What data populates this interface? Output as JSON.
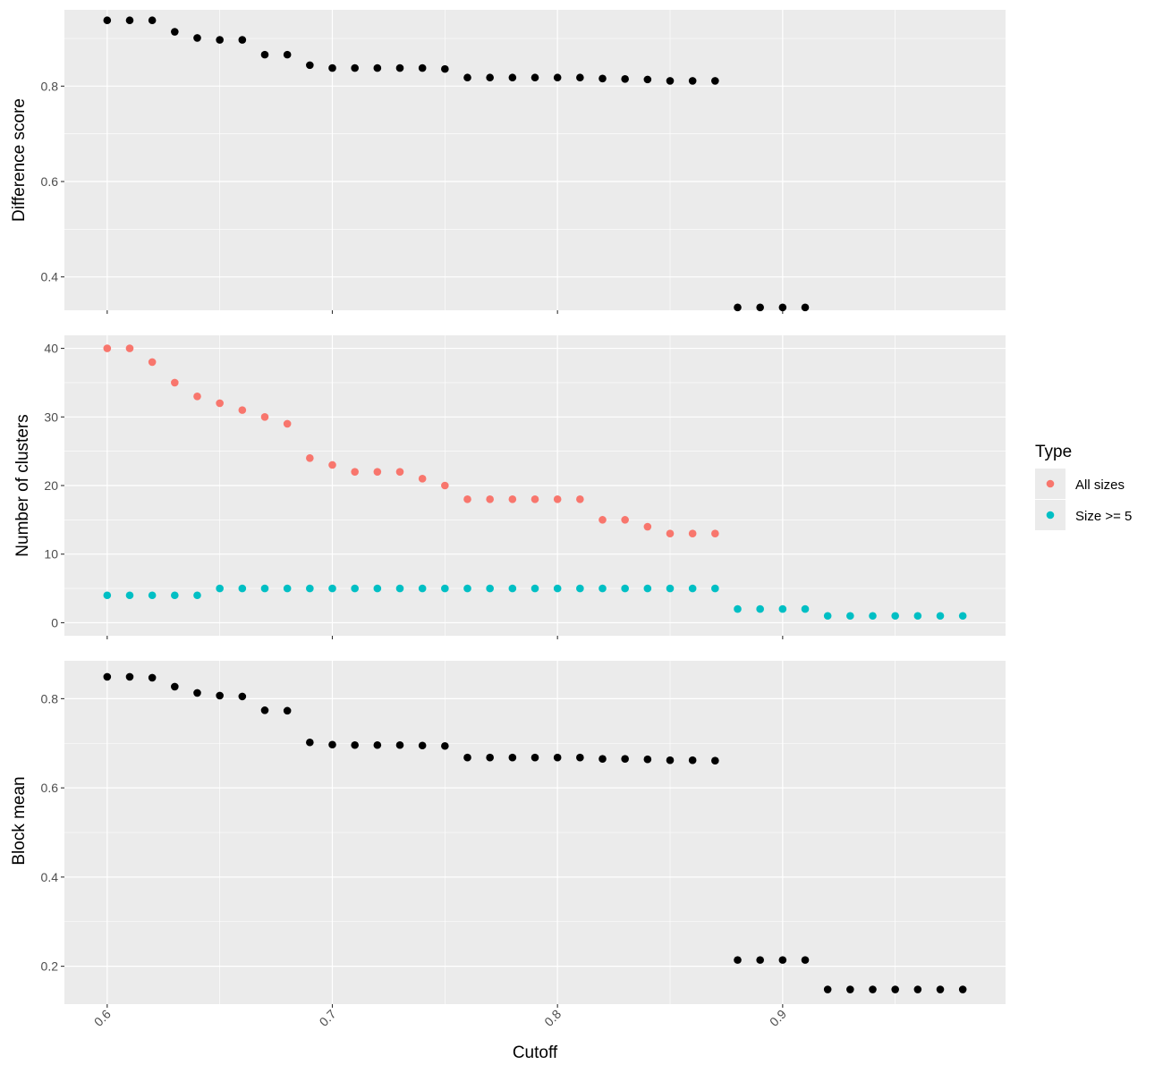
{
  "colors": {
    "panel_bg": "#EBEBEB",
    "grid_major": "#FFFFFF",
    "points_default": "#000000",
    "all_sizes": "#F8766D",
    "size_ge_5": "#00BFC4"
  },
  "chart_data": [
    {
      "type": "scatter",
      "panel": "top",
      "ylabel": "Difference score",
      "xlim": [
        0.581,
        0.999
      ],
      "ylim": [
        0.33,
        0.96
      ],
      "y_ticks": [
        0.4,
        0.6,
        0.8
      ],
      "y_tick_labels": [
        "0.4",
        "0.6",
        "0.8"
      ],
      "grid": true,
      "series": [
        {
          "color": "#000000",
          "x": [
            0.6,
            0.61,
            0.62,
            0.63,
            0.64,
            0.65,
            0.66,
            0.67,
            0.68,
            0.69,
            0.7,
            0.71,
            0.72,
            0.73,
            0.74,
            0.75,
            0.76,
            0.77,
            0.78,
            0.79,
            0.8,
            0.81,
            0.82,
            0.83,
            0.84,
            0.85,
            0.86,
            0.87,
            0.88,
            0.89,
            0.9,
            0.91
          ],
          "y": [
            0.938,
            0.938,
            0.938,
            0.914,
            0.901,
            0.897,
            0.897,
            0.866,
            0.866,
            0.844,
            0.838,
            0.838,
            0.838,
            0.838,
            0.838,
            0.836,
            0.818,
            0.818,
            0.818,
            0.818,
            0.818,
            0.818,
            0.816,
            0.815,
            0.814,
            0.811,
            0.811,
            0.811,
            0.336,
            0.336,
            0.336,
            0.336
          ]
        }
      ]
    },
    {
      "type": "scatter",
      "panel": "middle",
      "ylabel": "Number of clusters",
      "xlim": [
        0.581,
        0.999
      ],
      "ylim": [
        -1.9,
        41.9
      ],
      "y_ticks": [
        0,
        10,
        20,
        30,
        40
      ],
      "y_tick_labels": [
        "0",
        "10",
        "20",
        "30",
        "40"
      ],
      "grid": true,
      "legend": {
        "title": "Type",
        "position": "right",
        "entries": [
          "All sizes",
          "Size >= 5"
        ]
      },
      "series": [
        {
          "name": "All sizes",
          "color": "#F8766D",
          "x": [
            0.6,
            0.61,
            0.62,
            0.63,
            0.64,
            0.65,
            0.66,
            0.67,
            0.68,
            0.69,
            0.7,
            0.71,
            0.72,
            0.73,
            0.74,
            0.75,
            0.76,
            0.77,
            0.78,
            0.79,
            0.8,
            0.81,
            0.82,
            0.83,
            0.84,
            0.85,
            0.86,
            0.87
          ],
          "y": [
            40,
            40,
            38,
            35,
            33,
            32,
            31,
            30,
            29,
            24,
            23,
            22,
            22,
            22,
            21,
            20,
            18,
            18,
            18,
            18,
            18,
            18,
            15,
            15,
            14,
            13,
            13,
            13
          ]
        },
        {
          "name": "Size >= 5",
          "color": "#00BFC4",
          "x": [
            0.6,
            0.61,
            0.62,
            0.63,
            0.64,
            0.65,
            0.66,
            0.67,
            0.68,
            0.69,
            0.7,
            0.71,
            0.72,
            0.73,
            0.74,
            0.75,
            0.76,
            0.77,
            0.78,
            0.79,
            0.8,
            0.81,
            0.82,
            0.83,
            0.84,
            0.85,
            0.86,
            0.87,
            0.88,
            0.89,
            0.9,
            0.91,
            0.92,
            0.93,
            0.94,
            0.95,
            0.96,
            0.97,
            0.98
          ],
          "y": [
            4,
            4,
            4,
            4,
            4,
            5,
            5,
            5,
            5,
            5,
            5,
            5,
            5,
            5,
            5,
            5,
            5,
            5,
            5,
            5,
            5,
            5,
            5,
            5,
            5,
            5,
            5,
            5,
            2,
            2,
            2,
            2,
            1,
            1,
            1,
            1,
            1,
            1,
            1
          ]
        }
      ]
    },
    {
      "type": "scatter",
      "panel": "bottom",
      "ylabel": "Block mean",
      "xlabel": "Cutoff",
      "xlim": [
        0.581,
        0.999
      ],
      "ylim": [
        0.115,
        0.885
      ],
      "x_ticks": [
        0.6,
        0.7,
        0.8,
        0.9
      ],
      "x_tick_labels": [
        "0.6",
        "0.7",
        "0.8",
        "0.9"
      ],
      "y_ticks": [
        0.2,
        0.4,
        0.6,
        0.8
      ],
      "y_tick_labels": [
        "0.2",
        "0.4",
        "0.6",
        "0.8"
      ],
      "grid": true,
      "series": [
        {
          "color": "#000000",
          "x": [
            0.6,
            0.61,
            0.62,
            0.63,
            0.64,
            0.65,
            0.66,
            0.67,
            0.68,
            0.69,
            0.7,
            0.71,
            0.72,
            0.73,
            0.74,
            0.75,
            0.76,
            0.77,
            0.78,
            0.79,
            0.8,
            0.81,
            0.82,
            0.83,
            0.84,
            0.85,
            0.86,
            0.87,
            0.88,
            0.89,
            0.9,
            0.91,
            0.92,
            0.93,
            0.94,
            0.95,
            0.96,
            0.97,
            0.98
          ],
          "y": [
            0.849,
            0.849,
            0.847,
            0.827,
            0.813,
            0.807,
            0.805,
            0.774,
            0.773,
            0.702,
            0.697,
            0.696,
            0.696,
            0.696,
            0.695,
            0.694,
            0.668,
            0.668,
            0.668,
            0.668,
            0.668,
            0.668,
            0.665,
            0.665,
            0.664,
            0.662,
            0.662,
            0.661,
            0.214,
            0.214,
            0.214,
            0.214,
            0.148,
            0.148,
            0.148,
            0.148,
            0.148,
            0.148,
            0.148
          ]
        }
      ]
    }
  ]
}
